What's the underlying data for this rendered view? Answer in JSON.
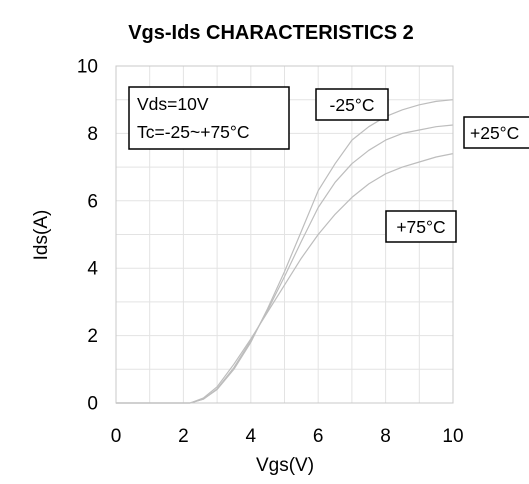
{
  "chart_data": {
    "type": "line",
    "title": "Vgs-Ids CHARACTERISTICS 2",
    "xlabel": "Vgs(V)",
    "ylabel": "Ids(A)",
    "xlim": [
      0,
      10
    ],
    "ylim": [
      0,
      10
    ],
    "xticks": [
      "0",
      "2",
      "4",
      "6",
      "8",
      "10"
    ],
    "yticks": [
      "0",
      "2",
      "4",
      "6",
      "8",
      "10"
    ],
    "grid": true,
    "series": [
      {
        "name": "-25°C",
        "color": "#bdbdbd",
        "x": [
          0,
          2.2,
          2.6,
          3.0,
          3.5,
          4.0,
          4.5,
          5.0,
          5.5,
          6.0,
          6.5,
          7.0,
          7.5,
          8.0,
          8.5,
          9.0,
          9.5,
          10.0
        ],
        "y": [
          0,
          0,
          0.12,
          0.4,
          1.0,
          1.8,
          2.8,
          3.9,
          5.1,
          6.3,
          7.1,
          7.8,
          8.2,
          8.5,
          8.7,
          8.85,
          8.95,
          9.0
        ]
      },
      {
        "name": "+25°C",
        "color": "#bdbdbd",
        "x": [
          0,
          2.2,
          2.6,
          3.0,
          3.5,
          4.0,
          4.5,
          5.0,
          5.5,
          6.0,
          6.5,
          7.0,
          7.5,
          8.0,
          8.5,
          9.0,
          9.5,
          10.0
        ],
        "y": [
          0,
          0,
          0.12,
          0.42,
          1.05,
          1.85,
          2.75,
          3.75,
          4.8,
          5.8,
          6.55,
          7.1,
          7.5,
          7.8,
          8.0,
          8.1,
          8.2,
          8.25
        ]
      },
      {
        "name": "+75°C",
        "color": "#bdbdbd",
        "x": [
          0,
          2.2,
          2.6,
          3.0,
          3.5,
          4.0,
          4.5,
          5.0,
          5.5,
          6.0,
          6.5,
          7.0,
          7.5,
          8.0,
          8.5,
          9.0,
          9.5,
          10.0
        ],
        "y": [
          0,
          0,
          0.15,
          0.48,
          1.15,
          1.9,
          2.7,
          3.5,
          4.3,
          5.0,
          5.6,
          6.1,
          6.5,
          6.8,
          7.0,
          7.15,
          7.3,
          7.4
        ]
      }
    ],
    "annotations": {
      "conditions_line1": "Vds=10V",
      "conditions_line2": "Tc=-25~+75°C",
      "label_minus25": "-25°C",
      "label_plus25": "+25°C",
      "label_plus75": "+75°C"
    }
  }
}
